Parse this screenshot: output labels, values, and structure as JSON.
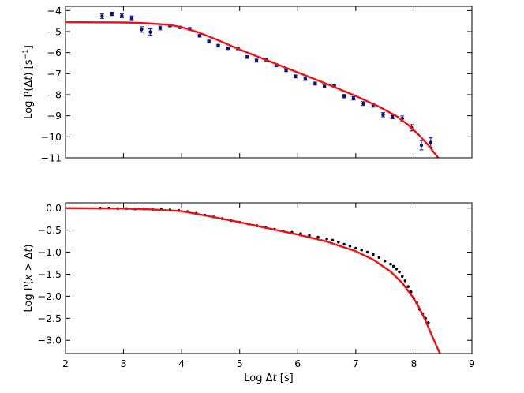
{
  "chart_data": [
    {
      "type": "scatter",
      "title": "",
      "xlabel": "",
      "ylabel_tex": [
        "Log P(",
        "Δ",
        "t",
        ") [s",
        "−1",
        "]"
      ],
      "xlim": [
        2,
        9
      ],
      "ylim": [
        -11,
        -3.8
      ],
      "xticks": [],
      "yticks": [
        "−4",
        "−5",
        "−6",
        "−7",
        "−8",
        "−9",
        "−10",
        "−11"
      ],
      "ytick_values": [
        -4,
        -5,
        -6,
        -7,
        -8,
        -9,
        -10,
        -11
      ],
      "grid": false,
      "colors": {
        "points": "#10106a",
        "errorbars": "#1f2fd0",
        "fit": "#ee1111"
      },
      "series": [
        {
          "kind": "points_with_errorbars",
          "x": [
            2.63,
            2.8,
            2.97,
            3.14,
            3.31,
            3.46,
            3.63,
            3.8,
            3.97,
            4.14,
            4.31,
            4.47,
            4.63,
            4.8,
            4.97,
            5.13,
            5.29,
            5.46,
            5.63,
            5.8,
            5.96,
            6.13,
            6.3,
            6.46,
            6.63,
            6.8,
            6.96,
            7.13,
            7.3,
            7.47,
            7.63,
            7.8,
            7.96,
            8.13,
            8.29
          ],
          "y": [
            -4.27,
            -4.16,
            -4.25,
            -4.35,
            -4.9,
            -5.02,
            -4.83,
            -4.72,
            -4.8,
            -4.87,
            -5.2,
            -5.47,
            -5.67,
            -5.79,
            -5.8,
            -6.21,
            -6.38,
            -6.33,
            -6.6,
            -6.83,
            -7.13,
            -7.25,
            -7.47,
            -7.61,
            -7.6,
            -8.07,
            -8.17,
            -8.42,
            -8.5,
            -8.95,
            -9.03,
            -9.13,
            -9.57,
            -10.4,
            -10.27
          ],
          "err": [
            0.11,
            0.08,
            0.09,
            0.09,
            0.13,
            0.15,
            0.09,
            0.05,
            0.05,
            0.06,
            0.06,
            0.06,
            0.06,
            0.06,
            0.06,
            0.06,
            0.07,
            0.07,
            0.07,
            0.07,
            0.07,
            0.07,
            0.07,
            0.07,
            0.07,
            0.08,
            0.08,
            0.09,
            0.09,
            0.1,
            0.11,
            0.12,
            0.15,
            0.22,
            0.22
          ]
        },
        {
          "kind": "fit_line",
          "x": [
            2.0,
            2.5,
            3.0,
            3.3,
            3.5,
            3.8,
            4.0,
            4.3,
            4.6,
            5.0,
            5.5,
            6.0,
            6.5,
            7.0,
            7.4,
            7.7,
            7.9,
            8.1,
            8.25,
            8.35,
            8.42
          ],
          "y": [
            -4.55,
            -4.56,
            -4.57,
            -4.59,
            -4.62,
            -4.68,
            -4.79,
            -5.05,
            -5.38,
            -5.85,
            -6.4,
            -6.94,
            -7.49,
            -8.06,
            -8.57,
            -9.02,
            -9.43,
            -9.95,
            -10.4,
            -10.76,
            -11.0
          ]
        }
      ]
    },
    {
      "type": "scatter",
      "title": "",
      "xlabel_tex": [
        "Log ",
        "Δ",
        "t",
        " [s]"
      ],
      "ylabel_tex": [
        "Log P(",
        "x",
        " > ",
        "Δ",
        "t",
        ")"
      ],
      "xlim": [
        2,
        9
      ],
      "ylim": [
        -3.3,
        0.12
      ],
      "xticks": [
        "2",
        "3",
        "4",
        "5",
        "6",
        "7",
        "8",
        "9"
      ],
      "xtick_values": [
        2,
        3,
        4,
        5,
        6,
        7,
        8,
        9
      ],
      "yticks": [
        "0.0",
        "−0.5",
        "−1.0",
        "−1.5",
        "−2.0",
        "−2.5",
        "−3.0"
      ],
      "ytick_values": [
        0,
        -0.5,
        -1.0,
        -1.5,
        -2.0,
        -2.5,
        -3.0
      ],
      "grid": false,
      "colors": {
        "points": "#000022",
        "fit": "#ee1111"
      },
      "series": [
        {
          "kind": "points",
          "x": [
            2.6,
            2.75,
            2.9,
            3.05,
            3.2,
            3.35,
            3.5,
            3.65,
            3.8,
            3.95,
            4.1,
            4.25,
            4.4,
            4.55,
            4.7,
            4.85,
            5.0,
            5.15,
            5.3,
            5.45,
            5.6,
            5.75,
            5.9,
            6.05,
            6.2,
            6.35,
            6.5,
            6.6,
            6.7,
            6.8,
            6.9,
            7.0,
            7.1,
            7.2,
            7.3,
            7.4,
            7.5,
            7.6,
            7.65,
            7.7,
            7.75,
            7.8,
            7.85,
            7.9,
            7.95,
            8.0,
            8.05,
            8.1,
            8.15,
            8.2,
            8.25
          ],
          "y": [
            0.0,
            0.0,
            -0.01,
            -0.01,
            -0.02,
            -0.02,
            -0.03,
            -0.03,
            -0.04,
            -0.05,
            -0.08,
            -0.12,
            -0.16,
            -0.2,
            -0.24,
            -0.28,
            -0.32,
            -0.36,
            -0.4,
            -0.44,
            -0.48,
            -0.52,
            -0.55,
            -0.58,
            -0.62,
            -0.66,
            -0.7,
            -0.73,
            -0.77,
            -0.82,
            -0.86,
            -0.91,
            -0.95,
            -1.0,
            -1.05,
            -1.12,
            -1.2,
            -1.27,
            -1.32,
            -1.38,
            -1.45,
            -1.55,
            -1.65,
            -1.78,
            -1.9,
            -2.05,
            -2.15,
            -2.3,
            -2.4,
            -2.5,
            -2.6
          ]
        },
        {
          "kind": "fit_line",
          "x": [
            2.0,
            2.5,
            3.0,
            3.5,
            4.0,
            4.5,
            5.0,
            5.5,
            6.0,
            6.5,
            7.0,
            7.3,
            7.6,
            7.8,
            8.0,
            8.1,
            8.2,
            8.3,
            8.38,
            8.45
          ],
          "y": [
            0.0,
            -0.003,
            -0.01,
            -0.03,
            -0.07,
            -0.19,
            -0.32,
            -0.46,
            -0.6,
            -0.76,
            -0.98,
            -1.17,
            -1.44,
            -1.7,
            -2.05,
            -2.28,
            -2.55,
            -2.86,
            -3.1,
            -3.3
          ]
        }
      ]
    }
  ]
}
